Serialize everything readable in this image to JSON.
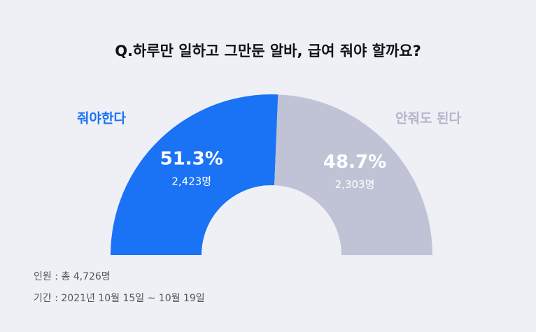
{
  "chart_data": {
    "type": "half-donut",
    "title": "Q.하루만 일하고 그만둔 알바, 급여 줘야 할까요?",
    "categories": [
      "줘야한다",
      "안줘도 된다"
    ],
    "values": [
      51.3,
      48.7
    ],
    "value_labels": [
      "51.3%",
      "48.7%"
    ],
    "counts": [
      2423,
      2303
    ],
    "count_labels": [
      "2,423명",
      "2,303명"
    ],
    "colors": [
      "#1a73f5",
      "#c0c3d6"
    ],
    "label_colors": [
      "#1a73f5",
      "#b3b6c9"
    ],
    "notes": [
      "인원 : 총 4,726명",
      "기간 : 2021년 10월 15일 ~ 10월 19일"
    ]
  }
}
